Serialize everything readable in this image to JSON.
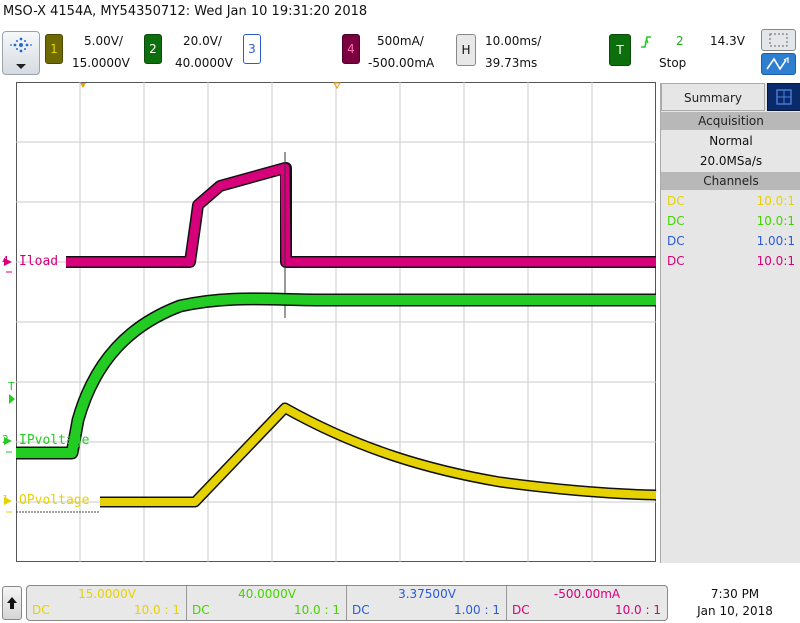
{
  "header": {
    "title": "MSO-X 4154A, MY54350712: Wed Jan 10 19:31:20 2018"
  },
  "channels": {
    "ch1": {
      "num": "1",
      "scale": "5.00V/",
      "offset": "15.0000V",
      "color": "#e6d200"
    },
    "ch2": {
      "num": "2",
      "scale": "20.0V/",
      "offset": "40.0000V",
      "color": "#22cc22"
    },
    "ch3": {
      "num": "3",
      "color": "#2a5bd7"
    },
    "ch4": {
      "num": "4",
      "scale": "500mA/",
      "offset": "-500.00mA",
      "color": "#d6007a"
    }
  },
  "horizontal": {
    "label": "H",
    "scale": "10.00ms/",
    "position": "39.73ms"
  },
  "trigger": {
    "label": "T",
    "icon": "rising-edge-icon",
    "source": "2",
    "level": "14.3V",
    "mode": "Stop"
  },
  "sidepanel": {
    "tab": "Summary",
    "acquisition_heading": "Acquisition",
    "acq_mode": "Normal",
    "sample_rate": "20.0MSa/s",
    "channels_heading": "Channels",
    "channel_rows": [
      {
        "coupling": "DC",
        "probe": "10.0:1",
        "color": "#e6d200"
      },
      {
        "coupling": "DC",
        "probe": "10.0:1",
        "color": "#44d400"
      },
      {
        "coupling": "DC",
        "probe": "1.00:1",
        "color": "#2a5bd7"
      },
      {
        "coupling": "DC",
        "probe": "10.0:1",
        "color": "#d6007a"
      }
    ]
  },
  "trace_labels": {
    "iload": "Iload",
    "ipvoltage": "IPvoltage",
    "opvoltage": "OPvoltage",
    "ch4_marker": "4",
    "ch2_marker": "2",
    "ch1_marker": "1",
    "trigger_marker": "T"
  },
  "bottom": {
    "cells": [
      {
        "value": "15.0000V",
        "coupling": "DC",
        "probe": "10.0 : 1",
        "color": "#e6d200"
      },
      {
        "value": "40.0000V",
        "coupling": "DC",
        "probe": "10.0 : 1",
        "color": "#44d400"
      },
      {
        "value": "3.37500V",
        "coupling": "DC",
        "probe": "1.00 : 1",
        "color": "#2a5bd7"
      },
      {
        "value": "-500.00mA",
        "coupling": "DC",
        "probe": "10.0 : 1",
        "color": "#d6007a"
      }
    ],
    "time": "7:30 PM",
    "date": "Jan 10, 2018"
  }
}
